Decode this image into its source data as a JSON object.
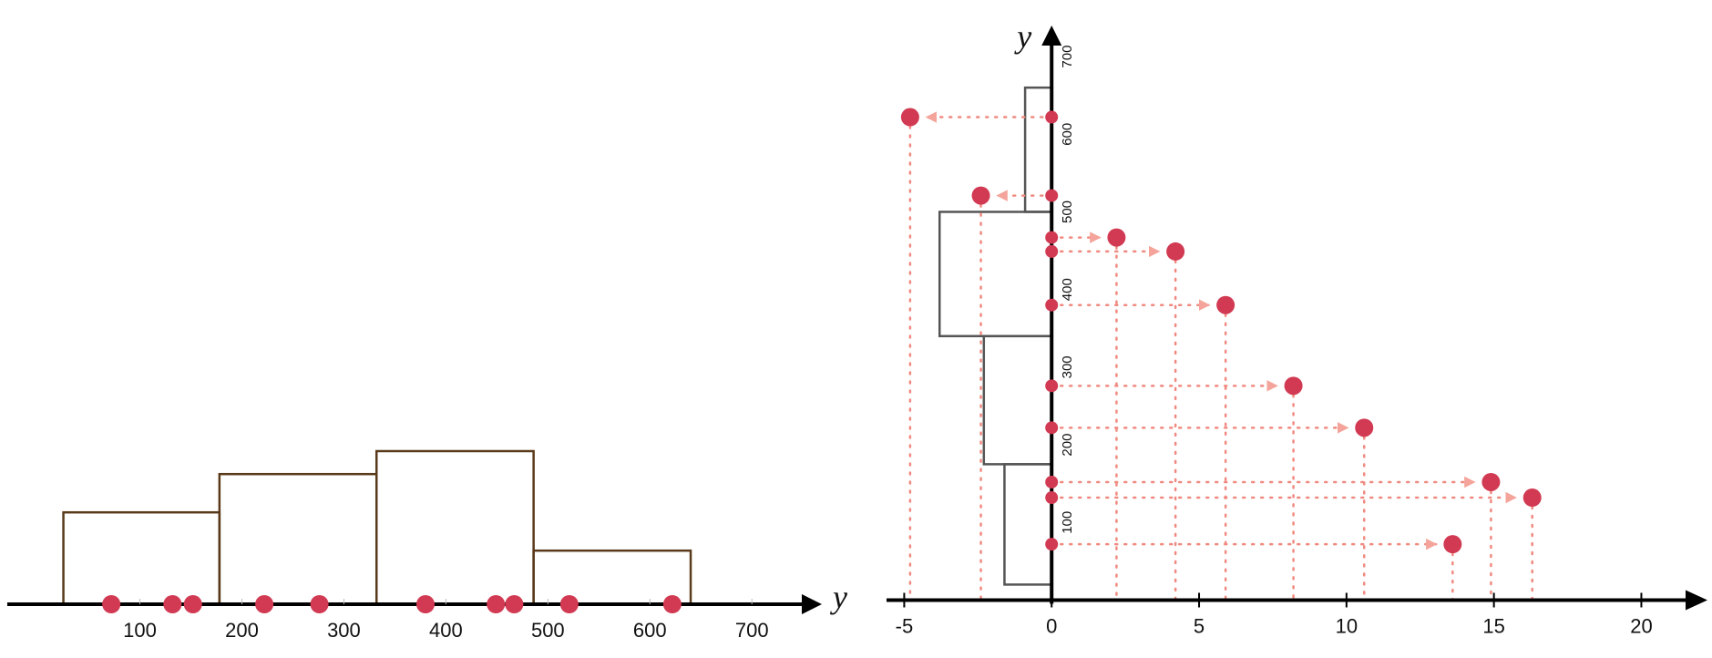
{
  "colors": {
    "axis": "#000000",
    "hist_left": "#5a3a1a",
    "hist_right": "#555555",
    "point": "#d13a52",
    "guide": "#f08a80",
    "arrow": "#f4a49a"
  },
  "chart_data": [
    {
      "type": "histogram",
      "axis": "x",
      "xlabel": "y",
      "xlim": [
        -30,
        740
      ],
      "xticks": [
        100,
        200,
        300,
        400,
        500,
        600,
        700
      ],
      "xtick_labels": [
        "100",
        "200",
        "300",
        "400",
        "500",
        "600",
        "700"
      ],
      "bins": [
        {
          "from": 25,
          "to": 178,
          "height": 0.6
        },
        {
          "from": 178,
          "to": 332,
          "height": 0.85
        },
        {
          "from": 332,
          "to": 486,
          "height": 1.0
        },
        {
          "from": 486,
          "to": 640,
          "height": 0.35
        }
      ],
      "points": [
        72,
        132,
        152,
        222,
        276,
        380,
        449,
        467,
        521,
        622
      ]
    },
    {
      "type": "scatter",
      "xlim": [
        -5.6,
        21.5
      ],
      "ylim": [
        -10,
        740
      ],
      "ylabel": "y",
      "xticks": [
        -5,
        0,
        5,
        10,
        15,
        20
      ],
      "xtick_labels": [
        "-5",
        "0",
        "5",
        "10",
        "15",
        "20"
      ],
      "yticks": [
        100,
        200,
        300,
        400,
        500,
        600,
        700
      ],
      "ytick_labels": [
        "100",
        "200",
        "300",
        "400",
        "500",
        "600",
        "700"
      ],
      "hist_bins": [
        {
          "from": 20,
          "to": 175,
          "width": -1.6
        },
        {
          "from": 175,
          "to": 340,
          "width": -2.3
        },
        {
          "from": 340,
          "to": 500,
          "width": -3.8
        },
        {
          "from": 500,
          "to": 660,
          "width": -0.9
        }
      ],
      "points": [
        {
          "y": 72,
          "x": 13.6
        },
        {
          "y": 132,
          "x": 16.3
        },
        {
          "y": 152,
          "x": 14.9
        },
        {
          "y": 222,
          "x": 10.6
        },
        {
          "y": 276,
          "x": 8.2
        },
        {
          "y": 380,
          "x": 5.9
        },
        {
          "y": 449,
          "x": 4.2
        },
        {
          "y": 467,
          "x": 2.2
        },
        {
          "y": 521,
          "x": -2.4
        },
        {
          "y": 622,
          "x": -4.8
        }
      ]
    }
  ]
}
